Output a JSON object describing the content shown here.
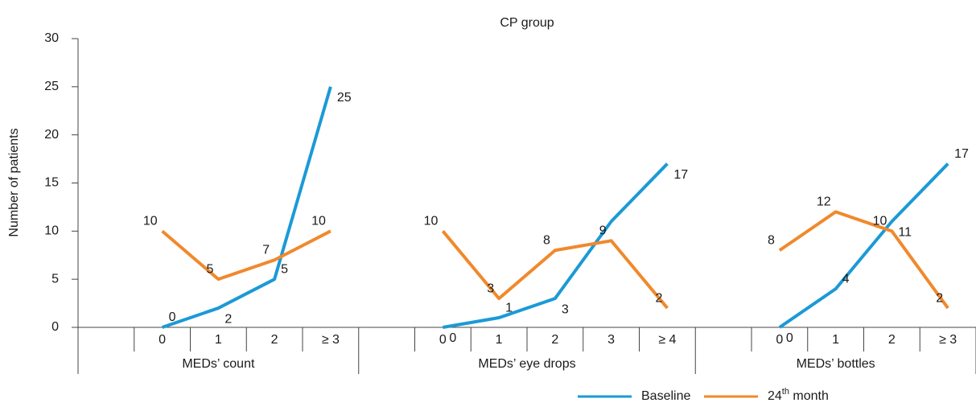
{
  "chart_data": {
    "type": "line",
    "title": "CP group",
    "y_label": "Number of patients",
    "groups": [
      {
        "name": "MEDs’ count",
        "categories": [
          null,
          "0",
          "1",
          "2",
          "≥ 3"
        ]
      },
      {
        "name": "MEDs’ eye drops",
        "categories": [
          null,
          "0",
          "1",
          "2",
          "3",
          "≥ 4"
        ]
      },
      {
        "name": "MEDs’ bottles",
        "categories": [
          null,
          "0",
          "1",
          "2",
          "≥ 3"
        ]
      }
    ],
    "series": [
      {
        "name": "Baseline",
        "color": "#1b9ad6",
        "values": [
          null,
          0,
          2,
          5,
          25,
          null,
          0,
          1,
          3,
          11,
          17,
          null,
          0,
          4,
          11,
          17
        ],
        "value_labels": [
          null,
          "0",
          "2",
          "5",
          "25",
          null,
          "0",
          "1",
          "3",
          null,
          "17",
          null,
          "0",
          "4",
          "11",
          "17"
        ]
      },
      {
        "name": "24th month",
        "color": "#f0892c",
        "values": [
          null,
          10,
          5,
          7,
          10,
          null,
          10,
          3,
          8,
          9,
          2,
          null,
          8,
          12,
          10,
          2
        ],
        "value_labels": [
          null,
          "10",
          "5",
          "7",
          "10",
          null,
          "10",
          "3",
          "8",
          "9",
          "2",
          null,
          "8",
          "12",
          "10",
          "2"
        ]
      }
    ],
    "ylim": [
      0,
      30
    ],
    "yticks": [
      0,
      5,
      10,
      15,
      20,
      25,
      30
    ],
    "legend": "bottom"
  }
}
